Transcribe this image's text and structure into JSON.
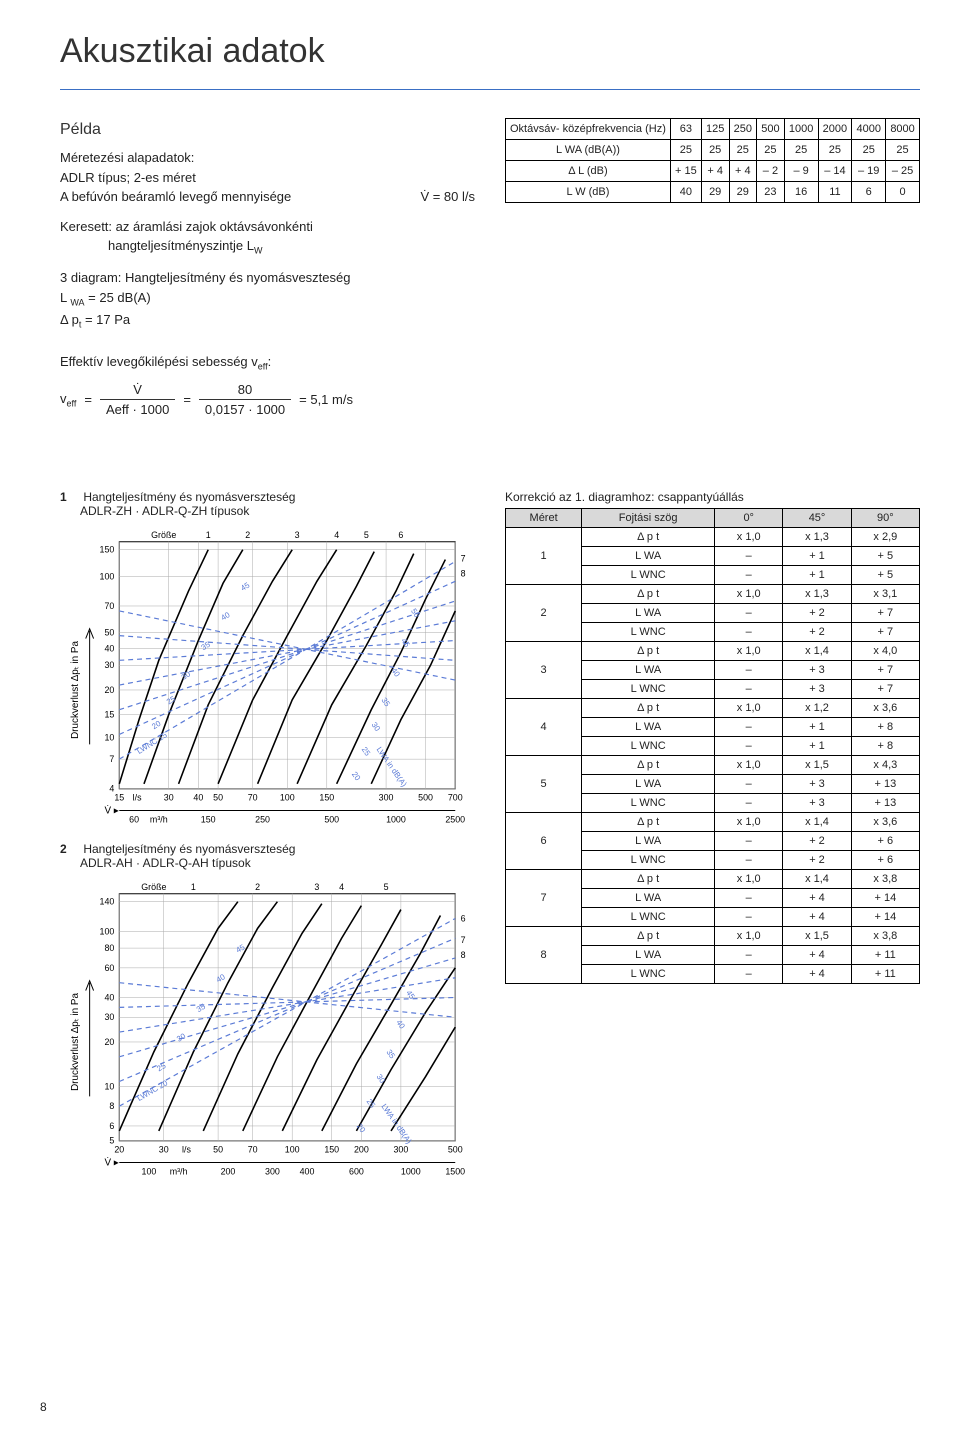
{
  "page_title": "Akusztikai adatok",
  "example": {
    "heading": "Példa",
    "line1": "Méretezési alapadatok:",
    "line2": "ADLR típus; 2-es méret",
    "line3_label": "A befúvón beáramló levegő mennyisége",
    "line3_value": "V̇ = 80 l/s",
    "line4a": "Keresett: az áramlási zajok oktávsávonkénti",
    "line4b": "hangteljesítményszintje L",
    "line4b_sub": "W",
    "line5a": "3 diagram: Hangteljesítmény és nyomásveszteség",
    "line5b": "L ",
    "line5b_sub": "WA",
    "line5b_rest": " = 25 dB(A)",
    "line5c": "Δ p",
    "line5c_sub": "t",
    "line5c_rest": " = 17 Pa",
    "eff_title": "Effektív levegőkilépési sebesség v",
    "eff_title_sub": "eff",
    "eff_label": "v",
    "eff_label_sub": "eff",
    "eq_eq": "=",
    "frac1_num": "V̇",
    "frac1_den": "Aeff · 1000",
    "frac2_num": "80",
    "frac2_den": "0,0157 · 1000",
    "eff_result": "= 5,1 m/s"
  },
  "octave_table": {
    "header_label": "Oktávsáv-\nközépfrekvencia\n(Hz)",
    "freqs": [
      "63",
      "125",
      "250",
      "500",
      "1000",
      "2000",
      "4000",
      "8000"
    ],
    "rows": [
      {
        "label": "L WA\n(dB(A))",
        "cells": [
          "25",
          "25",
          "25",
          "25",
          "25",
          "25",
          "25",
          "25"
        ]
      },
      {
        "label": "Δ L\n(dB)",
        "cells": [
          "+ 15",
          "+ 4",
          "+ 4",
          "– 2",
          "– 9",
          "– 14",
          "– 19",
          "– 25"
        ]
      },
      {
        "label": "L W\n(dB)",
        "cells": [
          "40",
          "29",
          "29",
          "23",
          "16",
          "11",
          "6",
          "0"
        ]
      }
    ]
  },
  "chart1": {
    "number": "1",
    "title_a": "Hangteljesítmény és nyomásverszteség",
    "title_b": "ADLR-ZH · ADLR-Q-ZH típusok",
    "grosse_label": "Größe",
    "series_labels": [
      "1",
      "2",
      "3",
      "4",
      "5",
      "6",
      "7",
      "8"
    ],
    "y_label": "Druckverlust Δpₜ in Pa",
    "y_ticks": [
      "4",
      "7",
      "10",
      "15",
      "20",
      "30",
      "40",
      "50",
      "70",
      "100",
      "150"
    ],
    "x_ticks_ls": [
      "15",
      "30",
      "40",
      "50",
      "70",
      "100",
      "150",
      "300",
      "500",
      "700"
    ],
    "x_unit_ls": "l/s",
    "x_ticks_m3h": [
      "60",
      "150",
      "250",
      "500",
      "1000",
      "2500"
    ],
    "x_unit_m3h": "m³/h",
    "diag_labels": [
      "LWNC 15",
      "20",
      "25",
      "30",
      "35",
      "40",
      "45",
      "50",
      "45",
      "40",
      "35",
      "30",
      "25",
      "20",
      "LWA in dB(A)"
    ]
  },
  "chart2": {
    "number": "2",
    "title_a": "Hangteljesítmény és nyomásverszteség",
    "title_b": "ADLR-AH · ADLR-Q-AH típusok",
    "grosse_label": "Größe",
    "series_labels": [
      "1",
      "2",
      "3",
      "4",
      "5",
      "6",
      "7",
      "8"
    ],
    "y_label": "Druckverlust Δpₜ in Pa",
    "y_ticks": [
      "5",
      "6",
      "8",
      "10",
      "20",
      "30",
      "40",
      "60",
      "80",
      "100",
      "140"
    ],
    "x_ticks_ls": [
      "20",
      "30",
      "50",
      "70",
      "100",
      "150",
      "200",
      "300",
      "500"
    ],
    "x_unit_ls": "l/s",
    "x_ticks_m3h": [
      "100",
      "200",
      "300",
      "400",
      "600",
      "1000",
      "1500"
    ],
    "x_unit_m3h": "m³/h",
    "diag_labels": [
      "LWNC 20",
      "25",
      "30",
      "35",
      "40",
      "45",
      "45",
      "40",
      "35",
      "30",
      "25",
      "20",
      "LWA in dB(A)"
    ]
  },
  "correction": {
    "title": "Korrekció az 1. diagramhoz: csappantyúállás",
    "head": [
      "Méret",
      "Fojtási szög",
      "0°",
      "45°",
      "90°"
    ],
    "metrics": [
      "Δ p t",
      "L WA",
      "L WNC"
    ],
    "rows": [
      {
        "size": "1",
        "cells": [
          [
            "x 1,0",
            "x 1,3",
            "x 2,9"
          ],
          [
            "–",
            "+ 1",
            "+ 5"
          ],
          [
            "–",
            "+ 1",
            "+ 5"
          ]
        ]
      },
      {
        "size": "2",
        "cells": [
          [
            "x 1,0",
            "x 1,3",
            "x 3,1"
          ],
          [
            "–",
            "+ 2",
            "+ 7"
          ],
          [
            "–",
            "+ 2",
            "+ 7"
          ]
        ]
      },
      {
        "size": "3",
        "cells": [
          [
            "x 1,0",
            "x 1,4",
            "x 4,0"
          ],
          [
            "–",
            "+ 3",
            "+ 7"
          ],
          [
            "–",
            "+ 3",
            "+ 7"
          ]
        ]
      },
      {
        "size": "4",
        "cells": [
          [
            "x 1,0",
            "x 1,2",
            "x 3,6"
          ],
          [
            "–",
            "+ 1",
            "+ 8"
          ],
          [
            "–",
            "+ 1",
            "+ 8"
          ]
        ]
      },
      {
        "size": "5",
        "cells": [
          [
            "x 1,0",
            "x 1,5",
            "x 4,3"
          ],
          [
            "–",
            "+ 3",
            "+ 13"
          ],
          [
            "–",
            "+ 3",
            "+ 13"
          ]
        ]
      },
      {
        "size": "6",
        "cells": [
          [
            "x 1,0",
            "x 1,4",
            "x 3,6"
          ],
          [
            "–",
            "+ 2",
            "+ 6"
          ],
          [
            "–",
            "+ 2",
            "+ 6"
          ]
        ]
      },
      {
        "size": "7",
        "cells": [
          [
            "x 1,0",
            "x 1,4",
            "x 3,8"
          ],
          [
            "–",
            "+ 4",
            "+ 14"
          ],
          [
            "–",
            "+ 4",
            "+ 14"
          ]
        ]
      },
      {
        "size": "8",
        "cells": [
          [
            "x 1,0",
            "x 1,5",
            "x 3,8"
          ],
          [
            "–",
            "+ 4",
            "+ 11"
          ],
          [
            "–",
            "+ 4",
            "+ 11"
          ]
        ]
      }
    ]
  },
  "page_number": "8",
  "colors": {
    "rule": "#3a6fc4",
    "line_black": "#000000",
    "line_dash": "#5b7bd6",
    "bg_table_head": "#d9d9d9"
  }
}
